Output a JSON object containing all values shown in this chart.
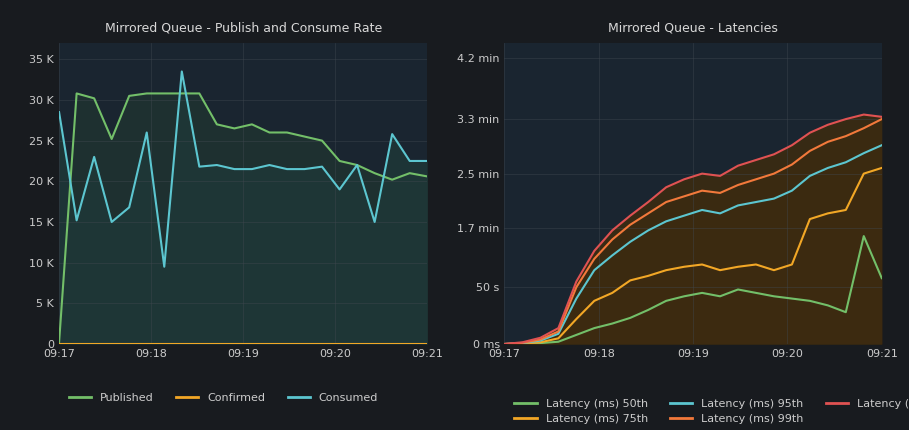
{
  "bg_color": "#181b1f",
  "panel_bg": "#1a2530",
  "grid_color": "#404850",
  "text_color": "#cccccc",
  "title_color": "#d8d8d8",
  "left_title": "Mirrored Queue - Publish and Consume Rate",
  "left_yticks_labels": [
    "0",
    "5 K",
    "10 K",
    "15 K",
    "20 K",
    "25 K",
    "30 K",
    "35 K"
  ],
  "left_yticks_vals": [
    0,
    5000,
    10000,
    15000,
    20000,
    25000,
    30000,
    35000
  ],
  "left_ylim": [
    0,
    37000
  ],
  "left_xtick_labels": [
    "09:17",
    "09:18",
    "09:19",
    "09:20",
    "09:21"
  ],
  "published": [
    200,
    30800,
    30200,
    25200,
    30500,
    30800,
    30800,
    30800,
    30800,
    27000,
    26500,
    27000,
    26000,
    26000,
    25500,
    25000,
    22500,
    22000,
    21000,
    20200,
    21000,
    20600
  ],
  "confirmed": [
    0,
    0,
    0,
    0,
    0,
    0,
    0,
    0,
    0,
    0,
    0,
    0,
    0,
    0,
    0,
    0,
    0,
    0,
    0,
    0,
    0,
    0
  ],
  "consumed": [
    28500,
    15200,
    23000,
    15000,
    16800,
    26000,
    9500,
    33500,
    21800,
    22000,
    21500,
    21500,
    22000,
    21500,
    21500,
    21800,
    19000,
    22000,
    15000,
    25800,
    22500,
    22500
  ],
  "published_color": "#73bf69",
  "confirmed_color": "#f2a726",
  "consumed_color": "#5cc6d0",
  "fill_pub_color": "#1e3535",
  "right_title": "Mirrored Queue - Latencies",
  "right_yticks_labels": [
    "0 ms",
    "50 s",
    "1.7 min",
    "2.5 min",
    "3.3 min",
    "4.2 min"
  ],
  "right_yticks_vals": [
    0,
    50000,
    102000,
    150000,
    198000,
    252000
  ],
  "right_ylim": [
    0,
    265000
  ],
  "right_xtick_labels": [
    "09:17",
    "09:18",
    "09:19",
    "09:20",
    "09:21"
  ],
  "lat50": [
    0,
    200,
    800,
    2000,
    8000,
    14000,
    18000,
    23000,
    30000,
    38000,
    42000,
    45000,
    42000,
    48000,
    45000,
    42000,
    40000,
    38000,
    34000,
    28000,
    95000,
    58000
  ],
  "lat75": [
    0,
    400,
    1500,
    5000,
    22000,
    38000,
    45000,
    56000,
    60000,
    65000,
    68000,
    70000,
    65000,
    68000,
    70000,
    65000,
    70000,
    110000,
    115000,
    118000,
    150000,
    155000
  ],
  "lat95": [
    0,
    800,
    3000,
    9000,
    40000,
    65000,
    78000,
    90000,
    100000,
    108000,
    113000,
    118000,
    115000,
    122000,
    125000,
    128000,
    135000,
    148000,
    155000,
    160000,
    168000,
    175000
  ],
  "lat99": [
    0,
    1000,
    4000,
    11000,
    50000,
    75000,
    92000,
    105000,
    115000,
    125000,
    130000,
    135000,
    133000,
    140000,
    145000,
    150000,
    158000,
    170000,
    178000,
    183000,
    190000,
    198000
  ],
  "lat999": [
    0,
    1500,
    5500,
    14000,
    55000,
    82000,
    100000,
    113000,
    125000,
    138000,
    145000,
    150000,
    148000,
    157000,
    162000,
    167000,
    175000,
    186000,
    193000,
    198000,
    202000,
    200000
  ],
  "lat50_color": "#73bf69",
  "lat75_color": "#f2a726",
  "lat95_color": "#5cc6d0",
  "lat99_color": "#f2793b",
  "lat999_color": "#e05252",
  "lat_fill_color": "#3d2b10"
}
